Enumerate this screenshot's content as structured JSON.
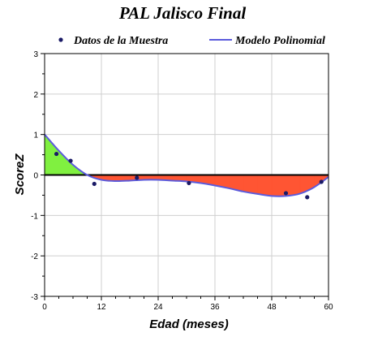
{
  "chart_data": {
    "type": "line",
    "title": "PAL Jalisco Final",
    "xlabel": "Edad (meses)",
    "ylabel": "ScoreZ",
    "xlim": [
      0,
      60
    ],
    "ylim": [
      -3,
      3
    ],
    "xticks": [
      "0",
      "12",
      "24",
      "36",
      "48",
      "60"
    ],
    "yticks": [
      "-3",
      "-2",
      "-1",
      "0",
      "1",
      "2",
      "3"
    ],
    "grid": true,
    "legend_position": "top",
    "series": [
      {
        "name": "Datos de la Muestra",
        "kind": "scatter",
        "color": "#1a1a66",
        "x": [
          2.5,
          5.5,
          10.5,
          19.5,
          30.5,
          51,
          55.5,
          58.5
        ],
        "y": [
          0.52,
          0.35,
          -0.22,
          -0.07,
          -0.2,
          -0.45,
          -0.55,
          -0.17
        ]
      },
      {
        "name": "Modelo Polinomial",
        "kind": "line",
        "color": "#5b5bdc",
        "x": [
          0,
          3,
          6,
          9,
          12,
          15,
          18,
          21,
          24,
          27,
          30,
          33,
          36,
          39,
          42,
          45,
          48,
          51,
          54,
          57,
          60
        ],
        "y": [
          1.0,
          0.6,
          0.25,
          0.0,
          -0.12,
          -0.15,
          -0.14,
          -0.12,
          -0.12,
          -0.14,
          -0.16,
          -0.2,
          -0.26,
          -0.33,
          -0.41,
          -0.47,
          -0.52,
          -0.52,
          -0.46,
          -0.3,
          -0.05
        ]
      }
    ],
    "fill_positive_color": "#80f040",
    "fill_negative_color": "#ff5533"
  }
}
